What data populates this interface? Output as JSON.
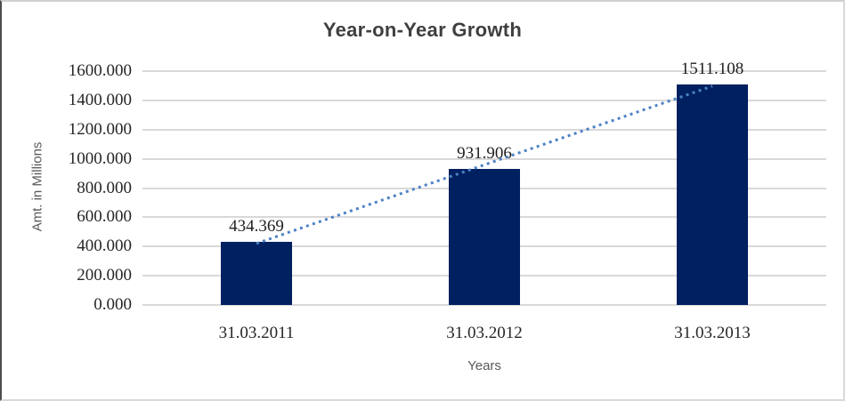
{
  "chart_data": {
    "type": "bar",
    "title": "Year-on-Year Growth",
    "xlabel": "Years",
    "ylabel": "Amt. in Millions",
    "categories": [
      "31.03.2011",
      "31.03.2012",
      "31.03.2013"
    ],
    "values": [
      434.369,
      931.906,
      1511.108
    ],
    "data_labels": [
      "434.369",
      "931.906",
      "1511.108"
    ],
    "ylim": [
      0,
      1600
    ],
    "ytick_step": 200,
    "ytick_decimals": 3,
    "grid": "horizontal",
    "legend": "none",
    "trendline": {
      "type": "linear",
      "style": "dotted",
      "color": "#4d82c4"
    },
    "colors": {
      "bar": "#002060",
      "gridline": "#d9d9d9",
      "title": "#3f3f3f",
      "axis_title": "#595959",
      "tick_label": "#262626",
      "data_label": "#1f1f1f"
    }
  }
}
